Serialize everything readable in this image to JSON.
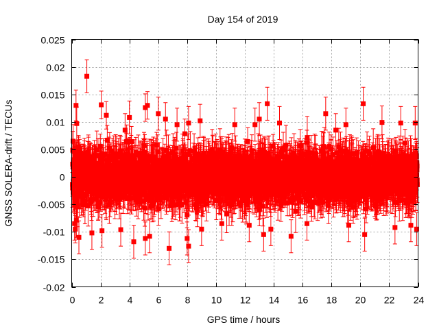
{
  "chart_data": {
    "type": "scatter",
    "title": "Day 154 of 2019",
    "xlabel": "GPS time / hours",
    "ylabel": "GNSS SOLERA-drift / TECUs",
    "xlim": [
      0,
      24
    ],
    "ylim": [
      -0.02,
      0.025
    ],
    "x_ticks": [
      0,
      2,
      4,
      6,
      8,
      10,
      12,
      14,
      16,
      18,
      20,
      22,
      24
    ],
    "x_tick_labels": [
      "0",
      "2",
      "4",
      "6",
      "8",
      "10",
      "12",
      "14",
      "16",
      "18",
      "20",
      "22",
      "24"
    ],
    "y_ticks": [
      -0.02,
      -0.015,
      -0.01,
      -0.005,
      0,
      0.005,
      0.01,
      0.015,
      0.02,
      0.025
    ],
    "y_tick_labels": [
      "-0.02",
      "-0.015",
      "-0.01",
      "-0.005",
      "0",
      "0.005",
      "0.01",
      "0.015",
      "0.02",
      "0.025"
    ],
    "grid": true,
    "series": [
      {
        "name": "SOLERA drift",
        "color": "#ff0000",
        "marker": "square",
        "error_bars": true,
        "typical_error": 0.003,
        "bulk_sigma": 0.0035,
        "highlighted_points": [
          {
            "x": 0.1,
            "y": 0.0065,
            "err": 0.003
          },
          {
            "x": 0.15,
            "y": 0.003,
            "err": 0.003
          },
          {
            "x": 0.2,
            "y": -0.0085,
            "err": 0.003
          },
          {
            "x": 0.25,
            "y": -0.0095,
            "err": 0.0025
          },
          {
            "x": 0.3,
            "y": 0.013,
            "err": 0.0028
          },
          {
            "x": 0.35,
            "y": 0.0097,
            "err": 0.003
          },
          {
            "x": 0.5,
            "y": -0.011,
            "err": 0.003
          },
          {
            "x": 1.05,
            "y": 0.0183,
            "err": 0.003
          },
          {
            "x": 1.4,
            "y": -0.0102,
            "err": 0.003
          },
          {
            "x": 2.05,
            "y": 0.0131,
            "err": 0.0025
          },
          {
            "x": 2.4,
            "y": 0.0112,
            "err": 0.0025
          },
          {
            "x": 2.1,
            "y": -0.0098,
            "err": 0.003
          },
          {
            "x": 3.4,
            "y": -0.0096,
            "err": 0.003
          },
          {
            "x": 3.7,
            "y": 0.0085,
            "err": 0.003
          },
          {
            "x": 4.0,
            "y": 0.0108,
            "err": 0.003
          },
          {
            "x": 4.3,
            "y": -0.0118,
            "err": 0.003
          },
          {
            "x": 5.1,
            "y": 0.0126,
            "err": 0.0025
          },
          {
            "x": 5.25,
            "y": 0.013,
            "err": 0.0025
          },
          {
            "x": 5.1,
            "y": -0.0112,
            "err": 0.003
          },
          {
            "x": 5.4,
            "y": -0.0108,
            "err": 0.003
          },
          {
            "x": 6.0,
            "y": 0.0115,
            "err": 0.003
          },
          {
            "x": 6.5,
            "y": 0.0105,
            "err": 0.003
          },
          {
            "x": 6.75,
            "y": -0.013,
            "err": 0.003
          },
          {
            "x": 7.3,
            "y": 0.0095,
            "err": 0.003
          },
          {
            "x": 8.1,
            "y": 0.0098,
            "err": 0.003
          },
          {
            "x": 8.0,
            "y": -0.0112,
            "err": 0.003
          },
          {
            "x": 8.1,
            "y": -0.0126,
            "err": 0.003
          },
          {
            "x": 8.9,
            "y": 0.0102,
            "err": 0.003
          },
          {
            "x": 9.0,
            "y": -0.0095,
            "err": 0.003
          },
          {
            "x": 10.4,
            "y": -0.0085,
            "err": 0.003
          },
          {
            "x": 11.3,
            "y": 0.0095,
            "err": 0.003
          },
          {
            "x": 12.3,
            "y": -0.0088,
            "err": 0.003
          },
          {
            "x": 12.7,
            "y": 0.0095,
            "err": 0.003
          },
          {
            "x": 13.0,
            "y": 0.0105,
            "err": 0.003
          },
          {
            "x": 13.3,
            "y": -0.0105,
            "err": 0.003
          },
          {
            "x": 13.55,
            "y": 0.0133,
            "err": 0.003
          },
          {
            "x": 13.8,
            "y": -0.0095,
            "err": 0.003
          },
          {
            "x": 14.4,
            "y": 0.0098,
            "err": 0.003
          },
          {
            "x": 15.2,
            "y": -0.0108,
            "err": 0.003
          },
          {
            "x": 16.3,
            "y": -0.0085,
            "err": 0.003
          },
          {
            "x": 17.6,
            "y": 0.0115,
            "err": 0.003
          },
          {
            "x": 18.3,
            "y": 0.0085,
            "err": 0.003
          },
          {
            "x": 19.0,
            "y": 0.0095,
            "err": 0.003
          },
          {
            "x": 19.2,
            "y": -0.0088,
            "err": 0.003
          },
          {
            "x": 20.2,
            "y": 0.0133,
            "err": 0.003
          },
          {
            "x": 20.3,
            "y": -0.0105,
            "err": 0.003
          },
          {
            "x": 21.5,
            "y": 0.0099,
            "err": 0.003
          },
          {
            "x": 22.4,
            "y": -0.0092,
            "err": 0.003
          },
          {
            "x": 22.8,
            "y": 0.0098,
            "err": 0.003
          },
          {
            "x": 23.5,
            "y": -0.0088,
            "err": 0.003
          },
          {
            "x": 23.8,
            "y": 0.0098,
            "err": 0.003
          },
          {
            "x": 23.9,
            "y": -0.0095,
            "err": 0.003
          }
        ]
      }
    ]
  }
}
